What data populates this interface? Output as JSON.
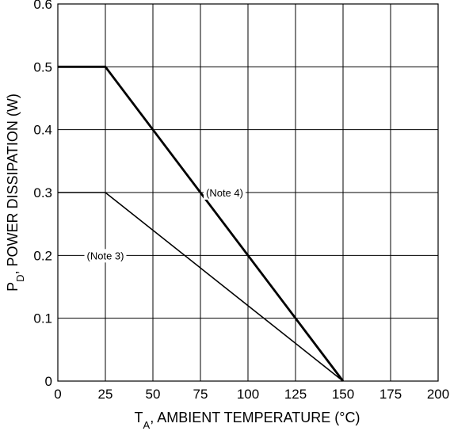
{
  "chart_data": {
    "type": "line",
    "xlabel": "T_A, AMBIENT TEMPERATURE (°C)",
    "xlabel_main": "T",
    "xlabel_sub": "A",
    "xlabel_rest": ", AMBIENT TEMPERATURE (°C)",
    "ylabel": "P_D, POWER DISSIPATION (W)",
    "ylabel_main": "P",
    "ylabel_sub": "D",
    "ylabel_rest": ", POWER DISSIPATION (W)",
    "xlim": [
      0,
      200
    ],
    "ylim": [
      0,
      0.6
    ],
    "grid": true,
    "x_ticks": [
      "0",
      "25",
      "50",
      "75",
      "100",
      "125",
      "150",
      "175",
      "200"
    ],
    "y_ticks": [
      "0",
      "0.1",
      "0.2",
      "0.3",
      "0.4",
      "0.5",
      "0.6"
    ],
    "series": [
      {
        "name": "(Note 4)",
        "x": [
          0,
          25,
          150
        ],
        "y": [
          0.5,
          0.5,
          0
        ],
        "label_at": [
          75,
          0.3
        ]
      },
      {
        "name": "(Note 3)",
        "x": [
          0,
          25,
          150
        ],
        "y": [
          0.3,
          0.3,
          0
        ],
        "label_at": [
          25,
          0.2
        ]
      }
    ]
  }
}
